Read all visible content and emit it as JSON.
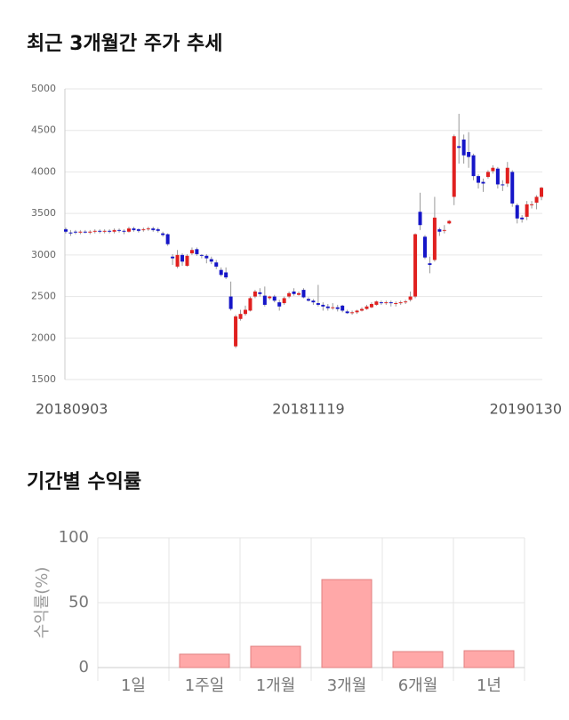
{
  "chart_data": [
    {
      "type": "candlestick",
      "title": "최근 3개월간 주가 추세",
      "categories": [
        "20180903",
        null,
        null,
        null,
        null,
        null,
        null,
        null,
        null,
        null,
        null,
        null,
        null,
        null,
        null,
        null,
        null,
        null,
        null,
        null,
        null,
        null,
        null,
        null,
        null,
        null,
        null,
        null,
        null,
        null,
        null,
        null,
        null,
        null,
        null,
        null,
        null,
        null,
        null,
        null,
        null,
        null,
        null,
        null,
        null,
        null,
        null,
        null,
        null,
        null,
        "20181119",
        null,
        null,
        null,
        null,
        null,
        null,
        null,
        null,
        null,
        null,
        null,
        null,
        null,
        null,
        null,
        null,
        null,
        null,
        null,
        null,
        null,
        null,
        null,
        null,
        null,
        null,
        null,
        null,
        null,
        null,
        null,
        null,
        null,
        null,
        null,
        null,
        null,
        null,
        null,
        null,
        null,
        null,
        null,
        null,
        null,
        null,
        null,
        "20190130"
      ],
      "open": [
        3310,
        3270,
        3280,
        3270,
        3280,
        3270,
        3280,
        3290,
        3280,
        3290,
        3280,
        3300,
        3290,
        3280,
        3320,
        3310,
        3300,
        3310,
        3320,
        3310,
        3260,
        3250,
        2980,
        2860,
        3000,
        2870,
        3020,
        3070,
        3000,
        2990,
        2950,
        2910,
        2820,
        2790,
        2500,
        1900,
        2230,
        2290,
        2330,
        2500,
        2550,
        2510,
        2480,
        2500,
        2430,
        2420,
        2500,
        2560,
        2520,
        2580,
        2470,
        2450,
        2420,
        2400,
        2380,
        2360,
        2370,
        2390,
        2320,
        2300,
        2310,
        2330,
        2350,
        2370,
        2400,
        2430,
        2420,
        2430,
        2410,
        2420,
        2430,
        2460,
        2500,
        3520,
        3220,
        2900,
        2940,
        3310,
        3290,
        3380,
        3700,
        4310,
        4390,
        4240,
        4200,
        3950,
        3880,
        3940,
        4010,
        4040,
        3850,
        3860,
        4000,
        3600,
        3450,
        3460,
        3600,
        3630,
        3700
      ],
      "high": [
        3330,
        3300,
        3300,
        3300,
        3300,
        3300,
        3310,
        3310,
        3310,
        3310,
        3320,
        3320,
        3310,
        3340,
        3340,
        3320,
        3330,
        3340,
        3340,
        3330,
        3280,
        3260,
        3010,
        3060,
        3020,
        3010,
        3090,
        3090,
        3010,
        3010,
        2980,
        2940,
        2850,
        2850,
        2680,
        2280,
        2340,
        2390,
        2500,
        2580,
        2600,
        2620,
        2510,
        2520,
        2460,
        2500,
        2560,
        2600,
        2560,
        2600,
        2490,
        2470,
        2640,
        2430,
        2410,
        2420,
        2400,
        2400,
        2340,
        2330,
        2340,
        2370,
        2400,
        2430,
        2450,
        2450,
        2450,
        2450,
        2440,
        2450,
        2460,
        2560,
        3260,
        3750,
        3240,
        2980,
        3700,
        3330,
        3360,
        3420,
        4450,
        4700,
        4450,
        4480,
        4220,
        3970,
        3920,
        4020,
        4080,
        4060,
        3900,
        4120,
        4020,
        3620,
        3480,
        3650,
        3650,
        3720,
        3820
      ],
      "low": [
        3260,
        3230,
        3250,
        3250,
        3260,
        3250,
        3260,
        3260,
        3260,
        3260,
        3260,
        3270,
        3250,
        3270,
        3280,
        3270,
        3280,
        3290,
        3280,
        3270,
        3220,
        3110,
        2880,
        2840,
        2870,
        2860,
        3000,
        2990,
        2960,
        2900,
        2890,
        2830,
        2740,
        2710,
        2330,
        1880,
        2210,
        2270,
        2320,
        2480,
        2500,
        2380,
        2460,
        2430,
        2330,
        2400,
        2480,
        2510,
        2510,
        2480,
        2440,
        2400,
        2380,
        2330,
        2330,
        2340,
        2320,
        2310,
        2290,
        2280,
        2290,
        2320,
        2340,
        2360,
        2390,
        2400,
        2400,
        2380,
        2380,
        2400,
        2410,
        2440,
        2480,
        3300,
        2950,
        2780,
        2920,
        3230,
        3260,
        3370,
        3600,
        4100,
        4100,
        4050,
        3900,
        3800,
        3760,
        3920,
        3980,
        3800,
        3770,
        3820,
        3580,
        3380,
        3390,
        3420,
        3560,
        3550,
        3660
      ],
      "close": [
        3280,
        3260,
        3270,
        3280,
        3270,
        3280,
        3290,
        3280,
        3290,
        3280,
        3300,
        3290,
        3280,
        3320,
        3300,
        3290,
        3310,
        3320,
        3300,
        3290,
        3240,
        3130,
        2960,
        3000,
        2920,
        2990,
        3060,
        3010,
        2990,
        2960,
        2920,
        2860,
        2760,
        2730,
        2350,
        2260,
        2290,
        2340,
        2480,
        2560,
        2530,
        2400,
        2500,
        2450,
        2380,
        2480,
        2540,
        2530,
        2540,
        2490,
        2450,
        2430,
        2400,
        2380,
        2360,
        2370,
        2350,
        2330,
        2300,
        2310,
        2330,
        2350,
        2380,
        2410,
        2440,
        2420,
        2430,
        2420,
        2420,
        2430,
        2440,
        2500,
        3250,
        3360,
        2970,
        2880,
        3450,
        3280,
        3300,
        3410,
        4430,
        4290,
        4200,
        4180,
        3950,
        3870,
        3860,
        4000,
        4050,
        3850,
        3840,
        4050,
        3620,
        3440,
        3430,
        3610,
        3610,
        3700,
        3810
      ],
      "up_color": "#e0201f",
      "down_color": "#1515c8",
      "ylim": [
        1500,
        5000
      ],
      "yticks": [
        1500,
        2000,
        2500,
        3000,
        3500,
        4000,
        4500,
        5000
      ],
      "grid": true
    },
    {
      "type": "bar",
      "title": "기간별 수익률",
      "y_label": "수익률(%)",
      "categories": [
        "1일",
        "1주일",
        "1개월",
        "3개월",
        "6개월",
        "1년"
      ],
      "values": [
        0,
        10.3,
        16.4,
        67.8,
        12.3,
        13
      ],
      "color": "#ffa8a8",
      "edge_color": "#e08080",
      "ylim": [
        0,
        100
      ],
      "yticks": [
        0,
        50,
        100
      ],
      "grid": true
    }
  ]
}
